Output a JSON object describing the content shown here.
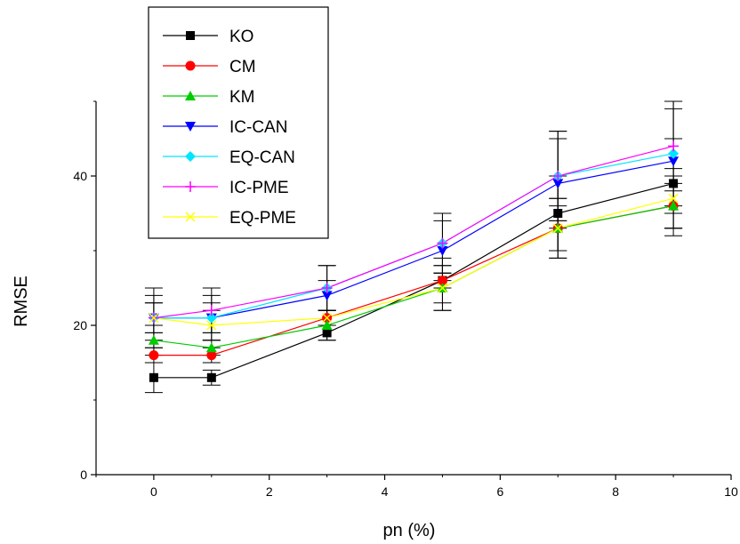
{
  "chart_data": {
    "type": "line",
    "title": "",
    "xlabel": "pn (%)",
    "ylabel": "RMSE",
    "xlim": [
      -1,
      10
    ],
    "ylim": [
      0,
      50
    ],
    "xticks": [
      0,
      2,
      4,
      6,
      8,
      10
    ],
    "yticks": [
      0,
      20,
      40
    ],
    "grid": false,
    "legend_position": "top-left",
    "x": [
      0,
      1,
      3,
      5,
      7,
      9
    ],
    "series": [
      {
        "name": "KO",
        "color": "#000000",
        "marker": "square",
        "values": [
          13,
          13,
          19,
          26,
          35,
          39
        ],
        "errors": [
          2,
          1,
          1,
          3,
          5,
          6
        ]
      },
      {
        "name": "CM",
        "color": "#ff0000",
        "marker": "circle",
        "values": [
          16,
          16,
          21,
          26,
          33,
          36
        ],
        "errors": [
          1,
          1,
          1,
          1,
          4,
          3
        ]
      },
      {
        "name": "KM",
        "color": "#00cc00",
        "marker": "triangle-up",
        "values": [
          18,
          17,
          20,
          25,
          33,
          36
        ],
        "errors": [
          2,
          1,
          2,
          3,
          4,
          4
        ]
      },
      {
        "name": "IC-CAN",
        "color": "#0000ff",
        "marker": "triangle-down",
        "values": [
          21,
          21,
          24,
          30,
          39,
          42
        ],
        "errors": [
          2,
          2,
          2,
          4,
          6,
          7
        ]
      },
      {
        "name": "EQ-CAN",
        "color": "#00e5ff",
        "marker": "diamond",
        "values": [
          21,
          21,
          25,
          31,
          40,
          43
        ],
        "errors": [
          3,
          3,
          3,
          4,
          6,
          7
        ]
      },
      {
        "name": "IC-PME",
        "color": "#ff00ff",
        "marker": "plus",
        "values": [
          21,
          22,
          25,
          31,
          40,
          44
        ],
        "errors": [
          4,
          3,
          3,
          4,
          6,
          6
        ]
      },
      {
        "name": "EQ-PME",
        "color": "#ffff00",
        "marker": "x",
        "values": [
          21,
          20,
          21,
          25,
          33,
          37
        ],
        "errors": [
          2,
          2,
          1,
          3,
          3,
          4
        ]
      }
    ]
  }
}
